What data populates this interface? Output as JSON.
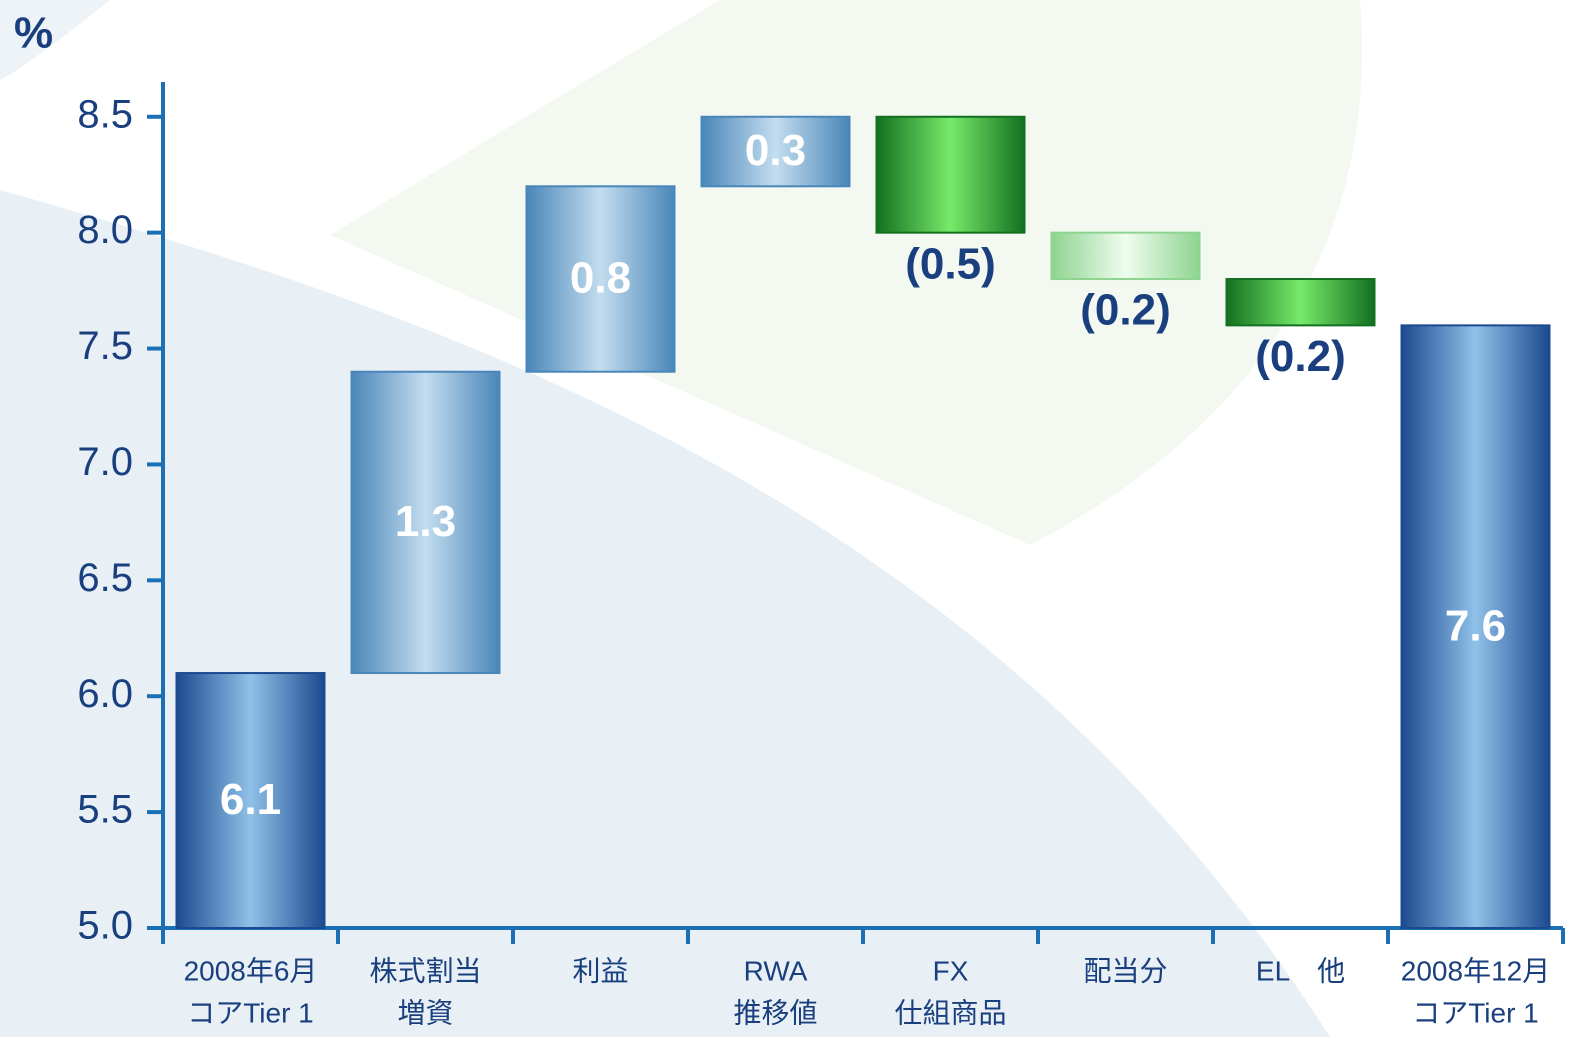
{
  "chart_data": {
    "type": "waterfall",
    "y_label": "%",
    "categories": [
      [
        "2008年6月",
        "コアTier 1"
      ],
      [
        "株式割当",
        "増資"
      ],
      [
        "利益"
      ],
      [
        "RWA",
        "推移値"
      ],
      [
        "FX",
        "仕組商品"
      ],
      [
        "配当分"
      ],
      [
        "EL　他"
      ],
      [
        "2008年12月",
        "コアTier 1"
      ]
    ],
    "values": [
      6.1,
      1.3,
      0.8,
      0.3,
      -0.5,
      -0.2,
      -0.2,
      7.6
    ],
    "value_labels": [
      "6.1",
      "1.3",
      "0.8",
      "0.3",
      "(0.5)",
      "(0.2)",
      "(0.2)",
      "7.6"
    ],
    "colors": [
      [
        "#1c4a90",
        "#8fc1e8"
      ],
      [
        "#4a86b9",
        "#c3ddef"
      ],
      [
        "#4a86b9",
        "#c3ddef"
      ],
      [
        "#4a86b9",
        "#c3ddef"
      ],
      [
        "#137020",
        "#77ea6a"
      ],
      [
        "#8ed38f",
        "#effdef"
      ],
      [
        "#137020",
        "#77ea6a"
      ],
      [
        "#1c4a90",
        "#8fc1e8"
      ]
    ],
    "ylim": [
      5.0,
      8.65
    ],
    "yticks": [
      {
        "value": 5.0,
        "label": "5.0"
      },
      {
        "value": 5.5,
        "label": "5.5"
      },
      {
        "value": 6.0,
        "label": "6.0"
      },
      {
        "value": 6.5,
        "label": "6.5"
      },
      {
        "value": 7.0,
        "label": "7.0"
      },
      {
        "value": 7.5,
        "label": "7.5"
      },
      {
        "value": 8.0,
        "label": "8.0"
      },
      {
        "value": 8.5,
        "label": "8.5"
      }
    ]
  }
}
